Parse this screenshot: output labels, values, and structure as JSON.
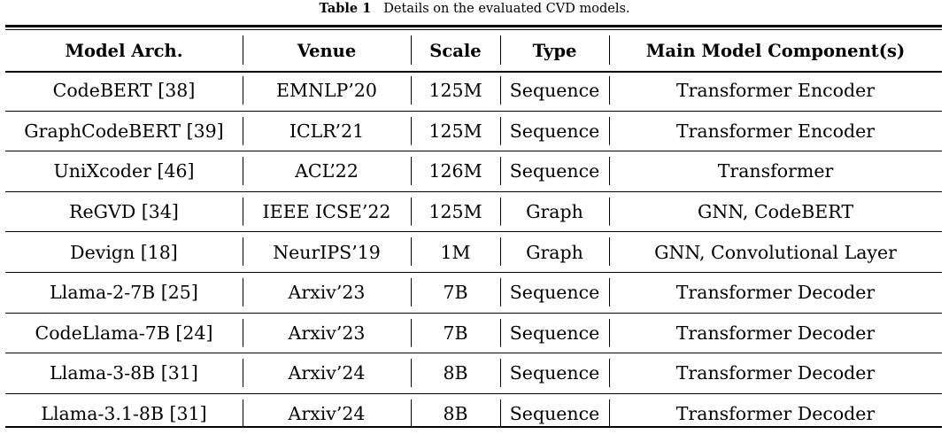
{
  "caption": {
    "label": "Table 1",
    "text": "Details on the evaluated CVD models."
  },
  "table": {
    "headers": [
      "Model Arch.",
      "Venue",
      "Scale",
      "Type",
      "Main Model Component(s)"
    ],
    "rows": [
      [
        "CodeBERT [38]",
        "EMNLP’20",
        "125M",
        "Sequence",
        "Transformer Encoder"
      ],
      [
        "GraphCodeBERT [39]",
        "ICLR’21",
        "125M",
        "Sequence",
        "Transformer Encoder"
      ],
      [
        "UniXcoder [46]",
        "ACL’22",
        "126M",
        "Sequence",
        "Transformer"
      ],
      [
        "ReGVD [34]",
        "IEEE ICSE’22",
        "125M",
        "Graph",
        "GNN, CodeBERT"
      ],
      [
        "Devign [18]",
        "NeurIPS’19",
        "1M",
        "Graph",
        "GNN, Convolutional Layer"
      ],
      [
        "Llama-2-7B [25]",
        "Arxiv’23",
        "7B",
        "Sequence",
        "Transformer Decoder"
      ],
      [
        "CodeLlama-7B [24]",
        "Arxiv’23",
        "7B",
        "Sequence",
        "Transformer Decoder"
      ],
      [
        "Llama-3-8B [31]",
        "Arxiv’24",
        "8B",
        "Sequence",
        "Transformer Decoder"
      ],
      [
        "Llama-3.1-8B [31]",
        "Arxiv’24",
        "8B",
        "Sequence",
        "Transformer Decoder"
      ]
    ]
  }
}
